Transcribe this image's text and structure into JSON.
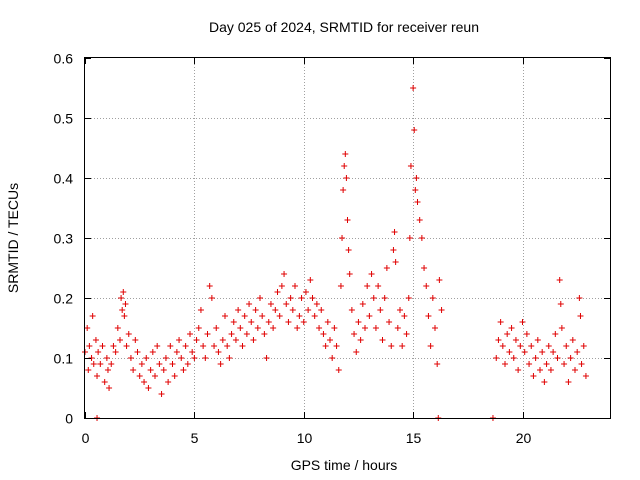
{
  "chart_data": {
    "type": "scatter",
    "title": "Day 025 of 2024, SRMTID for receiver reun",
    "xlabel": "GPS time / hours",
    "ylabel": "SRMTID / TECUs",
    "xlim": [
      0,
      24
    ],
    "ylim": [
      0,
      0.6
    ],
    "xticks": [
      0,
      5,
      10,
      15,
      20
    ],
    "yticks": [
      0,
      0.1,
      0.2,
      0.3,
      0.4,
      0.5,
      0.6
    ],
    "xtick_labels": [
      "0",
      "5",
      "10",
      "15",
      "20"
    ],
    "ytick_labels": [
      "0",
      "0.1",
      "0.2",
      "0.3",
      "0.4",
      "0.5",
      "0.6"
    ],
    "grid": true,
    "legend": "none",
    "marker": "+",
    "color": "#e00000",
    "series": [
      {
        "name": "SRMTID",
        "points": [
          [
            0.0,
            0.11
          ],
          [
            0.1,
            0.15
          ],
          [
            0.15,
            0.08
          ],
          [
            0.2,
            0.12
          ],
          [
            0.3,
            0.1
          ],
          [
            0.35,
            0.17
          ],
          [
            0.4,
            0.09
          ],
          [
            0.5,
            0.13
          ],
          [
            0.55,
            0.07
          ],
          [
            0.6,
            0.11
          ],
          [
            0.7,
            0.09
          ],
          [
            0.8,
            0.12
          ],
          [
            0.9,
            0.06
          ],
          [
            1.0,
            0.1
          ],
          [
            1.05,
            0.08
          ],
          [
            1.1,
            0.05
          ],
          [
            1.2,
            0.09
          ],
          [
            1.3,
            0.12
          ],
          [
            1.4,
            0.11
          ],
          [
            1.5,
            0.15
          ],
          [
            1.6,
            0.13
          ],
          [
            1.65,
            0.2
          ],
          [
            1.7,
            0.18
          ],
          [
            1.75,
            0.21
          ],
          [
            1.8,
            0.17
          ],
          [
            1.85,
            0.19
          ],
          [
            1.9,
            0.12
          ],
          [
            2.0,
            0.14
          ],
          [
            2.1,
            0.1
          ],
          [
            2.2,
            0.08
          ],
          [
            2.3,
            0.13
          ],
          [
            2.4,
            0.11
          ],
          [
            2.5,
            0.07
          ],
          [
            2.6,
            0.09
          ],
          [
            2.7,
            0.06
          ],
          [
            2.8,
            0.1
          ],
          [
            2.9,
            0.05
          ],
          [
            3.0,
            0.08
          ],
          [
            3.1,
            0.11
          ],
          [
            3.2,
            0.07
          ],
          [
            3.3,
            0.12
          ],
          [
            3.4,
            0.09
          ],
          [
            3.5,
            0.04
          ],
          [
            3.6,
            0.08
          ],
          [
            3.7,
            0.1
          ],
          [
            3.8,
            0.06
          ],
          [
            3.9,
            0.12
          ],
          [
            4.0,
            0.09
          ],
          [
            4.1,
            0.07
          ],
          [
            4.2,
            0.11
          ],
          [
            4.3,
            0.13
          ],
          [
            4.4,
            0.1
          ],
          [
            4.5,
            0.08
          ],
          [
            4.6,
            0.12
          ],
          [
            4.7,
            0.09
          ],
          [
            4.8,
            0.14
          ],
          [
            4.9,
            0.11
          ],
          [
            5.0,
            0.1
          ],
          [
            5.1,
            0.13
          ],
          [
            5.2,
            0.15
          ],
          [
            5.3,
            0.18
          ],
          [
            5.4,
            0.12
          ],
          [
            5.5,
            0.1
          ],
          [
            5.6,
            0.14
          ],
          [
            5.7,
            0.22
          ],
          [
            5.8,
            0.2
          ],
          [
            5.9,
            0.12
          ],
          [
            6.0,
            0.15
          ],
          [
            6.1,
            0.11
          ],
          [
            6.2,
            0.09
          ],
          [
            6.3,
            0.13
          ],
          [
            6.4,
            0.17
          ],
          [
            6.5,
            0.12
          ],
          [
            6.6,
            0.1
          ],
          [
            6.7,
            0.14
          ],
          [
            6.8,
            0.16
          ],
          [
            6.9,
            0.13
          ],
          [
            7.0,
            0.18
          ],
          [
            7.1,
            0.15
          ],
          [
            7.2,
            0.12
          ],
          [
            7.3,
            0.17
          ],
          [
            7.4,
            0.14
          ],
          [
            7.5,
            0.19
          ],
          [
            7.6,
            0.16
          ],
          [
            7.7,
            0.13
          ],
          [
            7.8,
            0.18
          ],
          [
            7.9,
            0.15
          ],
          [
            8.0,
            0.2
          ],
          [
            8.1,
            0.17
          ],
          [
            8.2,
            0.14
          ],
          [
            8.3,
            0.1
          ],
          [
            8.4,
            0.16
          ],
          [
            8.5,
            0.19
          ],
          [
            8.6,
            0.15
          ],
          [
            8.7,
            0.18
          ],
          [
            8.8,
            0.21
          ],
          [
            8.9,
            0.17
          ],
          [
            9.0,
            0.22
          ],
          [
            9.1,
            0.24
          ],
          [
            9.2,
            0.19
          ],
          [
            9.3,
            0.16
          ],
          [
            9.4,
            0.2
          ],
          [
            9.5,
            0.18
          ],
          [
            9.6,
            0.22
          ],
          [
            9.7,
            0.15
          ],
          [
            9.8,
            0.17
          ],
          [
            9.9,
            0.2
          ],
          [
            10.0,
            0.16
          ],
          [
            10.1,
            0.21
          ],
          [
            10.2,
            0.18
          ],
          [
            10.3,
            0.23
          ],
          [
            10.4,
            0.2
          ],
          [
            10.5,
            0.17
          ],
          [
            10.6,
            0.19
          ],
          [
            10.7,
            0.15
          ],
          [
            10.8,
            0.18
          ],
          [
            10.9,
            0.14
          ],
          [
            11.0,
            0.12
          ],
          [
            11.1,
            0.16
          ],
          [
            11.2,
            0.13
          ],
          [
            11.3,
            0.1
          ],
          [
            11.4,
            0.15
          ],
          [
            11.5,
            0.12
          ],
          [
            11.6,
            0.08
          ],
          [
            11.7,
            0.22
          ],
          [
            11.75,
            0.3
          ],
          [
            11.8,
            0.38
          ],
          [
            11.85,
            0.42
          ],
          [
            11.9,
            0.44
          ],
          [
            11.95,
            0.4
          ],
          [
            12.0,
            0.33
          ],
          [
            12.05,
            0.28
          ],
          [
            12.1,
            0.24
          ],
          [
            12.2,
            0.18
          ],
          [
            12.3,
            0.14
          ],
          [
            12.4,
            0.11
          ],
          [
            12.5,
            0.16
          ],
          [
            12.6,
            0.13
          ],
          [
            12.7,
            0.19
          ],
          [
            12.8,
            0.15
          ],
          [
            12.9,
            0.22
          ],
          [
            13.0,
            0.17
          ],
          [
            13.1,
            0.24
          ],
          [
            13.2,
            0.2
          ],
          [
            13.3,
            0.15
          ],
          [
            13.4,
            0.22
          ],
          [
            13.5,
            0.18
          ],
          [
            13.6,
            0.13
          ],
          [
            13.7,
            0.2
          ],
          [
            13.8,
            0.25
          ],
          [
            13.9,
            0.16
          ],
          [
            14.0,
            0.12
          ],
          [
            14.1,
            0.28
          ],
          [
            14.15,
            0.31
          ],
          [
            14.2,
            0.26
          ],
          [
            14.3,
            0.15
          ],
          [
            14.4,
            0.18
          ],
          [
            14.5,
            0.12
          ],
          [
            14.6,
            0.17
          ],
          [
            14.7,
            0.14
          ],
          [
            14.8,
            0.2
          ],
          [
            14.85,
            0.3
          ],
          [
            14.9,
            0.42
          ],
          [
            15.0,
            0.55
          ],
          [
            15.05,
            0.48
          ],
          [
            15.1,
            0.38
          ],
          [
            15.15,
            0.4
          ],
          [
            15.2,
            0.36
          ],
          [
            15.3,
            0.33
          ],
          [
            15.4,
            0.3
          ],
          [
            15.5,
            0.25
          ],
          [
            15.6,
            0.22
          ],
          [
            15.7,
            0.17
          ],
          [
            15.8,
            0.12
          ],
          [
            15.9,
            0.2
          ],
          [
            16.0,
            0.15
          ],
          [
            16.1,
            0.09
          ],
          [
            16.2,
            0.23
          ],
          [
            16.3,
            0.18
          ],
          [
            18.8,
            0.1
          ],
          [
            18.9,
            0.13
          ],
          [
            19.0,
            0.16
          ],
          [
            19.1,
            0.12
          ],
          [
            19.2,
            0.09
          ],
          [
            19.3,
            0.14
          ],
          [
            19.4,
            0.11
          ],
          [
            19.5,
            0.15
          ],
          [
            19.6,
            0.1
          ],
          [
            19.7,
            0.13
          ],
          [
            19.8,
            0.08
          ],
          [
            19.9,
            0.12
          ],
          [
            20.0,
            0.16
          ],
          [
            20.1,
            0.11
          ],
          [
            20.2,
            0.14
          ],
          [
            20.3,
            0.09
          ],
          [
            20.4,
            0.12
          ],
          [
            20.5,
            0.07
          ],
          [
            20.6,
            0.1
          ],
          [
            20.7,
            0.13
          ],
          [
            20.8,
            0.08
          ],
          [
            20.9,
            0.11
          ],
          [
            21.0,
            0.06
          ],
          [
            21.1,
            0.09
          ],
          [
            21.2,
            0.12
          ],
          [
            21.3,
            0.08
          ],
          [
            21.4,
            0.11
          ],
          [
            21.5,
            0.14
          ],
          [
            21.6,
            0.1
          ],
          [
            21.7,
            0.23
          ],
          [
            21.75,
            0.19
          ],
          [
            21.8,
            0.15
          ],
          [
            21.9,
            0.09
          ],
          [
            22.0,
            0.12
          ],
          [
            22.1,
            0.06
          ],
          [
            22.2,
            0.1
          ],
          [
            22.3,
            0.13
          ],
          [
            22.4,
            0.08
          ],
          [
            22.5,
            0.11
          ],
          [
            22.6,
            0.2
          ],
          [
            22.65,
            0.17
          ],
          [
            22.7,
            0.09
          ],
          [
            22.8,
            0.12
          ],
          [
            22.9,
            0.07
          ]
        ]
      }
    ],
    "zero_points": [
      [
        0.55,
        0
      ],
      [
        16.15,
        0
      ],
      [
        18.65,
        0
      ]
    ]
  }
}
